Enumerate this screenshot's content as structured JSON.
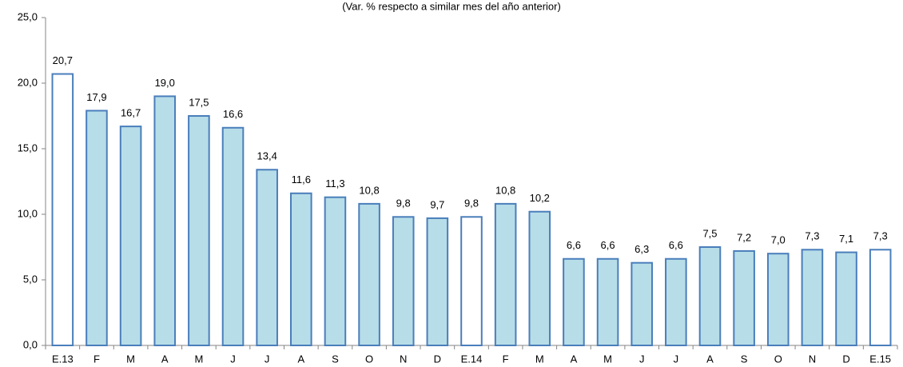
{
  "chart_data": {
    "type": "bar",
    "subtitle": "(Var. % respecto a similar mes del año anterior)",
    "categories": [
      "E.13",
      "F",
      "M",
      "A",
      "M",
      "J",
      "J",
      "A",
      "S",
      "O",
      "N",
      "D",
      "E.14",
      "F",
      "M",
      "A",
      "M",
      "J",
      "J",
      "A",
      "S",
      "O",
      "N",
      "D",
      "E.15"
    ],
    "values": [
      20.7,
      17.9,
      16.7,
      19.0,
      17.5,
      16.6,
      13.4,
      11.6,
      11.3,
      10.8,
      9.8,
      9.7,
      9.8,
      10.8,
      10.2,
      6.6,
      6.6,
      6.3,
      6.6,
      7.5,
      7.2,
      7.0,
      7.3,
      7.1,
      7.3
    ],
    "value_labels": [
      "20,7",
      "17,9",
      "16,7",
      "19,0",
      "17,5",
      "16,6",
      "13,4",
      "11,6",
      "11,3",
      "10,8",
      "9,8",
      "9,7",
      "9,8",
      "10,8",
      "10,2",
      "6,6",
      "6,6",
      "6,3",
      "6,6",
      "7,5",
      "7,2",
      "7,0",
      "7,3",
      "7,1",
      "7,3"
    ],
    "colors": [
      "#ffffff",
      "#b7dde8",
      "#b7dde8",
      "#b7dde8",
      "#b7dde8",
      "#b7dde8",
      "#b7dde8",
      "#b7dde8",
      "#b7dde8",
      "#b7dde8",
      "#b7dde8",
      "#b7dde8",
      "#ffffff",
      "#b7dde8",
      "#b7dde8",
      "#b7dde8",
      "#b7dde8",
      "#b7dde8",
      "#b7dde8",
      "#b7dde8",
      "#b7dde8",
      "#b7dde8",
      "#b7dde8",
      "#b7dde8",
      "#ffffff"
    ],
    "border_color": "#4a7ebb",
    "ylim": [
      0,
      25
    ],
    "yticks": [
      {
        "value": 0,
        "label": "0,0"
      },
      {
        "value": 5,
        "label": "5,0"
      },
      {
        "value": 10,
        "label": "10,0"
      },
      {
        "value": 15,
        "label": "15,0"
      },
      {
        "value": 20,
        "label": "20,0"
      },
      {
        "value": 25,
        "label": "25,0"
      }
    ],
    "grid": false
  }
}
